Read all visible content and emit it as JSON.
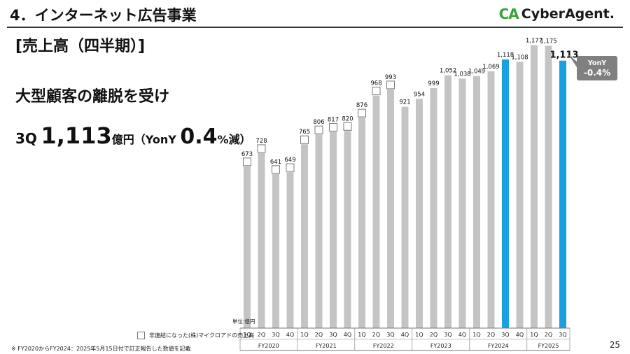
{
  "header": {
    "title": "4．インターネット広告事業",
    "logo_mark": "CA",
    "logo_text": "CyberAgent."
  },
  "section_title": "[売上高（四半期）]",
  "headline": "大型顧客の離脱を受け",
  "figure": {
    "quarter": "3Q",
    "amount": "1,113",
    "unit": "億円（YonY",
    "percent": "0.4",
    "suffix": "%減）"
  },
  "chart_data": {
    "type": "bar",
    "unit_label": "単位:億円",
    "categories": [
      "1Q",
      "2Q",
      "3Q",
      "4Q",
      "1Q",
      "2Q",
      "3Q",
      "4Q",
      "1Q",
      "2Q",
      "3Q",
      "4Q",
      "1Q",
      "2Q",
      "3Q",
      "4Q",
      "1Q",
      "2Q",
      "3Q",
      "4Q",
      "1Q",
      "2Q",
      "3Q"
    ],
    "groups": [
      {
        "label": "FY2020",
        "count": 4
      },
      {
        "label": "FY2021",
        "count": 4
      },
      {
        "label": "FY2022",
        "count": 4
      },
      {
        "label": "FY2023",
        "count": 4
      },
      {
        "label": "FY2024",
        "count": 4
      },
      {
        "label": "FY2025",
        "count": 3
      }
    ],
    "values": [
      673,
      728,
      641,
      649,
      765,
      806,
      817,
      820,
      876,
      968,
      993,
      921,
      954,
      999,
      1052,
      1038,
      1049,
      1069,
      1118,
      1108,
      1177,
      1175,
      1113
    ],
    "value_labels": [
      "673",
      "728",
      "641",
      "649",
      "765",
      "806",
      "817",
      "820",
      "876",
      "968",
      "993",
      "921",
      "954",
      "999",
      "1,052",
      "1,038",
      "1,049",
      "1,069",
      "1,118",
      "1,108",
      "1,177",
      "1,175",
      "1,113"
    ],
    "microad_flags": [
      true,
      true,
      true,
      true,
      true,
      true,
      true,
      true,
      true,
      true,
      true,
      false,
      false,
      false,
      false,
      false,
      false,
      false,
      false,
      false,
      false,
      false,
      false
    ],
    "highlight": [
      false,
      false,
      false,
      false,
      false,
      false,
      false,
      false,
      false,
      false,
      false,
      false,
      false,
      false,
      false,
      false,
      false,
      false,
      true,
      false,
      false,
      false,
      true
    ],
    "colors": {
      "bar": "#c4c4c4",
      "highlight": "#1a9fe0",
      "badge": "#808080"
    },
    "callout": {
      "label": "YonY",
      "value": "-0.4%"
    },
    "legend": "非連結になった(株)マイクロアドの売上高",
    "ylim": [
      0,
      1250
    ]
  },
  "footnote": "※ FY2020からFY2024：2025年5月15日付で訂正報告した数値を記載",
  "page_number": "25"
}
